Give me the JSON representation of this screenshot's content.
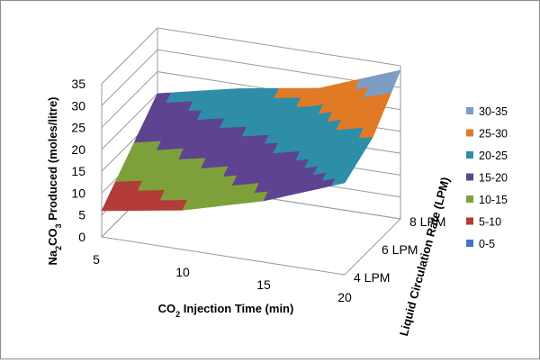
{
  "chart_data": {
    "type": "surface",
    "x": [
      5,
      10,
      15,
      20
    ],
    "series": [
      {
        "name": "4 LPM",
        "values": [
          6,
          9,
          14,
          21
        ]
      },
      {
        "name": "6 LPM",
        "values": [
          13,
          17,
          21,
          25
        ]
      },
      {
        "name": "8 LPM",
        "values": [
          20,
          24,
          27,
          34
        ]
      }
    ],
    "xlabel": {
      "pre": "CO",
      "sub": "2",
      "post": " Injection Time (min)"
    },
    "ylabel": {
      "pre": "Na",
      "sub1": "2",
      "mid": "CO",
      "sub2": "3",
      "post": " Produced (moles/litre)"
    },
    "zlabel": "Liquid Circulation Rate (LPM)",
    "x_tick_labels": [
      "5",
      "10",
      "15",
      "20"
    ],
    "y_tick_labels": [
      "0",
      "5",
      "10",
      "15",
      "20",
      "25",
      "30",
      "35"
    ],
    "z_tick_labels": [
      "4 LPM",
      "6 LPM",
      "8 LPM"
    ],
    "ylim": [
      0,
      35
    ],
    "grid": true,
    "legend_position": "right",
    "legend": [
      {
        "label": "30-35",
        "color": "#7f9cc4"
      },
      {
        "label": "25-30",
        "color": "#e07a25"
      },
      {
        "label": "20-25",
        "color": "#2e8ea8"
      },
      {
        "label": "15-20",
        "color": "#5e4390"
      },
      {
        "label": "10-15",
        "color": "#7ea03a"
      },
      {
        "label": "5-10",
        "color": "#b33b38"
      },
      {
        "label": "0-5",
        "color": "#4472c4"
      }
    ]
  }
}
